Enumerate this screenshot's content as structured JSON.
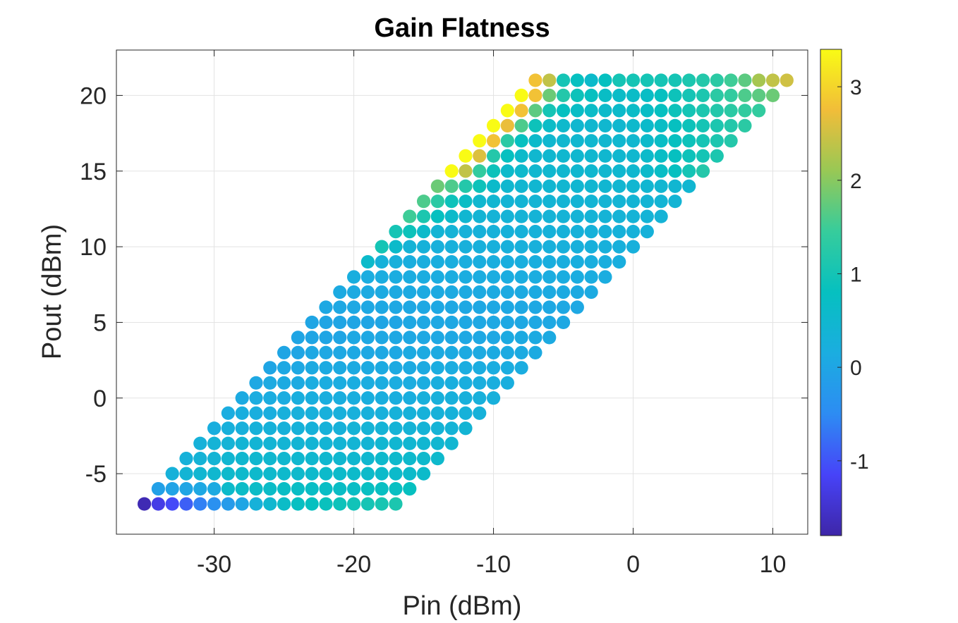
{
  "chart_data": {
    "type": "scatter",
    "title": "Gain Flatness",
    "xlabel": "Pin (dBm)",
    "ylabel": "Pout (dBm)",
    "xlim": [
      -37,
      12.5
    ],
    "ylim": [
      -9,
      23
    ],
    "xticks": [
      -30,
      -20,
      -10,
      0,
      10
    ],
    "xtick_labels": [
      "-30",
      "-20",
      "-10",
      "0",
      "10"
    ],
    "yticks": [
      -5,
      0,
      5,
      10,
      15,
      20
    ],
    "ytick_labels": [
      "-5",
      "0",
      "5",
      "10",
      "15",
      "20"
    ],
    "grid": true,
    "colormap": "parula",
    "colorbar": {
      "range": [
        -1.8,
        3.4
      ],
      "ticks": [
        -1,
        0,
        1,
        2,
        3
      ],
      "tick_labels": [
        "-1",
        "0",
        "1",
        "2",
        "3"
      ]
    },
    "pout_rows": [
      -7,
      -6,
      -5,
      -4,
      -3,
      -2,
      -1,
      0,
      1,
      2,
      3,
      4,
      5,
      6,
      7,
      8,
      9,
      10,
      11,
      12,
      13,
      14,
      15,
      16,
      17,
      18,
      19,
      20,
      21
    ],
    "pin_range_per_row": [
      [
        -35,
        -17
      ],
      [
        -34,
        -16
      ],
      [
        -33,
        -15
      ],
      [
        -32,
        -14
      ],
      [
        -31,
        -13
      ],
      [
        -30,
        -12
      ],
      [
        -29,
        -11
      ],
      [
        -28,
        -10
      ],
      [
        -27,
        -9
      ],
      [
        -26,
        -8
      ],
      [
        -25,
        -7
      ],
      [
        -24,
        -6
      ],
      [
        -23,
        -5
      ],
      [
        -22,
        -4
      ],
      [
        -21,
        -3
      ],
      [
        -20,
        -2
      ],
      [
        -19,
        -1
      ],
      [
        -18,
        0
      ],
      [
        -17,
        1
      ],
      [
        -16,
        2
      ],
      [
        -15,
        3
      ],
      [
        -14,
        4
      ],
      [
        -13,
        5
      ],
      [
        -12,
        6
      ],
      [
        -11,
        7
      ],
      [
        -10,
        8
      ],
      [
        -9,
        9
      ],
      [
        -8,
        10
      ],
      [
        -7,
        11
      ]
    ],
    "values_per_row": [
      [
        -1.7,
        -1.3,
        -1.1,
        -0.9,
        -0.6,
        -0.4,
        -0.2,
        0.0,
        0.3,
        0.5,
        0.65,
        0.75,
        0.8,
        0.85,
        0.9,
        0.95,
        1.0,
        1.05,
        1.1
      ],
      [
        -0.1,
        -0.05,
        0.0,
        0.05,
        0.1,
        0.6,
        0.65,
        0.65,
        0.65,
        0.7,
        0.7,
        0.7,
        0.7,
        0.7,
        0.7,
        0.75,
        0.75,
        0.75,
        0.8
      ],
      [
        0.3,
        0.4,
        0.45,
        0.5,
        0.55,
        0.55,
        0.55,
        0.55,
        0.55,
        0.55,
        0.55,
        0.6,
        0.6,
        0.6,
        0.6,
        0.6,
        0.6,
        0.6,
        0.6
      ],
      [
        0.3,
        0.35,
        0.4,
        0.45,
        0.5,
        0.5,
        0.5,
        0.5,
        0.5,
        0.5,
        0.5,
        0.5,
        0.5,
        0.5,
        0.55,
        0.55,
        0.55,
        0.55,
        0.55
      ],
      [
        0.3,
        0.35,
        0.35,
        0.4,
        0.4,
        0.4,
        0.4,
        0.4,
        0.4,
        0.4,
        0.4,
        0.4,
        0.4,
        0.45,
        0.45,
        0.45,
        0.45,
        0.45,
        0.45
      ],
      [
        0.2,
        0.25,
        0.25,
        0.3,
        0.3,
        0.3,
        0.3,
        0.3,
        0.3,
        0.3,
        0.35,
        0.35,
        0.35,
        0.35,
        0.35,
        0.35,
        0.35,
        0.35,
        0.4
      ],
      [
        0.15,
        0.2,
        0.2,
        0.2,
        0.25,
        0.25,
        0.25,
        0.25,
        0.25,
        0.25,
        0.25,
        0.25,
        0.3,
        0.3,
        0.3,
        0.3,
        0.3,
        0.3,
        0.3
      ],
      [
        0.1,
        0.15,
        0.15,
        0.15,
        0.2,
        0.2,
        0.2,
        0.2,
        0.2,
        0.2,
        0.2,
        0.2,
        0.2,
        0.25,
        0.25,
        0.25,
        0.25,
        0.25,
        0.25
      ],
      [
        0.05,
        0.1,
        0.1,
        0.1,
        0.15,
        0.15,
        0.15,
        0.15,
        0.15,
        0.15,
        0.15,
        0.15,
        0.15,
        0.2,
        0.2,
        0.2,
        0.2,
        0.2,
        0.2
      ],
      [
        0.0,
        0.05,
        0.05,
        0.1,
        0.1,
        0.1,
        0.1,
        0.1,
        0.1,
        0.1,
        0.1,
        0.1,
        0.15,
        0.15,
        0.15,
        0.15,
        0.15,
        0.15,
        0.15
      ],
      [
        0.0,
        0.0,
        0.05,
        0.05,
        0.05,
        0.05,
        0.05,
        0.05,
        0.05,
        0.1,
        0.1,
        0.1,
        0.1,
        0.1,
        0.1,
        0.1,
        0.1,
        0.1,
        0.1
      ],
      [
        0.0,
        0.0,
        0.0,
        0.0,
        0.05,
        0.05,
        0.05,
        0.05,
        0.05,
        0.05,
        0.05,
        0.05,
        0.05,
        0.05,
        0.05,
        0.1,
        0.1,
        0.1,
        0.1
      ],
      [
        0.0,
        0.0,
        0.0,
        0.0,
        0.0,
        0.0,
        0.0,
        0.05,
        0.05,
        0.05,
        0.05,
        0.05,
        0.05,
        0.05,
        0.05,
        0.05,
        0.05,
        0.05,
        0.05
      ],
      [
        0.05,
        0.05,
        0.05,
        0.05,
        0.05,
        0.05,
        0.05,
        0.05,
        0.05,
        0.05,
        0.05,
        0.05,
        0.05,
        0.05,
        0.05,
        0.05,
        0.05,
        0.05,
        0.05
      ],
      [
        0.1,
        0.1,
        0.1,
        0.1,
        0.1,
        0.1,
        0.1,
        0.1,
        0.1,
        0.1,
        0.1,
        0.1,
        0.1,
        0.1,
        0.1,
        0.1,
        0.1,
        0.1,
        0.1
      ],
      [
        0.2,
        0.15,
        0.15,
        0.15,
        0.15,
        0.15,
        0.15,
        0.15,
        0.15,
        0.15,
        0.15,
        0.15,
        0.15,
        0.15,
        0.15,
        0.15,
        0.15,
        0.15,
        0.15
      ],
      [
        0.6,
        0.3,
        0.25,
        0.2,
        0.2,
        0.2,
        0.2,
        0.2,
        0.2,
        0.2,
        0.2,
        0.2,
        0.2,
        0.2,
        0.2,
        0.2,
        0.2,
        0.2,
        0.2
      ],
      [
        1.0,
        0.6,
        0.35,
        0.3,
        0.25,
        0.25,
        0.25,
        0.25,
        0.25,
        0.25,
        0.25,
        0.25,
        0.25,
        0.25,
        0.25,
        0.25,
        0.25,
        0.25,
        0.25
      ],
      [
        1.0,
        0.9,
        0.6,
        0.4,
        0.35,
        0.3,
        0.3,
        0.3,
        0.3,
        0.3,
        0.3,
        0.3,
        0.3,
        0.3,
        0.3,
        0.3,
        0.3,
        0.3,
        0.3
      ],
      [
        1.5,
        1.1,
        0.8,
        0.6,
        0.45,
        0.4,
        0.35,
        0.35,
        0.35,
        0.35,
        0.35,
        0.35,
        0.35,
        0.35,
        0.35,
        0.35,
        0.35,
        0.35,
        0.35
      ],
      [
        1.6,
        1.3,
        0.9,
        0.7,
        0.5,
        0.45,
        0.4,
        0.4,
        0.4,
        0.4,
        0.4,
        0.4,
        0.4,
        0.4,
        0.4,
        0.4,
        0.4,
        0.4,
        0.4
      ],
      [
        1.8,
        1.6,
        1.2,
        0.9,
        0.6,
        0.5,
        0.45,
        0.45,
        0.45,
        0.45,
        0.45,
        0.45,
        0.45,
        0.45,
        0.45,
        0.45,
        0.45,
        0.45,
        0.45
      ],
      [
        3.4,
        2.4,
        1.4,
        0.9,
        0.6,
        0.55,
        0.5,
        0.5,
        0.5,
        0.5,
        0.5,
        0.5,
        0.5,
        0.5,
        0.6,
        0.7,
        0.8,
        1.0,
        1.2
      ],
      [
        3.4,
        2.6,
        1.2,
        0.8,
        0.6,
        0.5,
        0.5,
        0.5,
        0.5,
        0.5,
        0.5,
        0.5,
        0.5,
        0.6,
        0.7,
        0.8,
        0.9,
        1.0,
        1.1
      ],
      [
        3.4,
        2.8,
        1.3,
        0.8,
        0.6,
        0.5,
        0.5,
        0.5,
        0.5,
        0.5,
        0.5,
        0.5,
        0.6,
        0.7,
        0.8,
        0.9,
        1.0,
        1.1,
        1.2
      ],
      [
        3.4,
        2.7,
        1.6,
        0.9,
        0.65,
        0.55,
        0.5,
        0.5,
        0.5,
        0.5,
        0.55,
        0.6,
        0.7,
        0.8,
        0.9,
        1.0,
        1.1,
        1.2,
        1.3
      ],
      [
        3.4,
        2.8,
        1.7,
        1.0,
        0.8,
        0.7,
        0.65,
        0.6,
        0.6,
        0.65,
        0.7,
        0.8,
        0.9,
        1.0,
        1.1,
        1.2,
        1.3,
        1.4,
        1.4
      ],
      [
        3.4,
        2.8,
        1.8,
        1.2,
        0.9,
        0.8,
        0.7,
        0.65,
        0.65,
        0.7,
        0.8,
        0.9,
        1.0,
        1.1,
        1.3,
        1.4,
        1.6,
        1.7,
        1.8
      ],
      [
        2.8,
        2.4,
        1.0,
        0.8,
        0.6,
        0.8,
        1.0,
        1.0,
        1.0,
        1.0,
        1.0,
        1.1,
        1.2,
        1.3,
        1.5,
        1.7,
        2.2,
        2.4,
        2.5
      ]
    ]
  }
}
